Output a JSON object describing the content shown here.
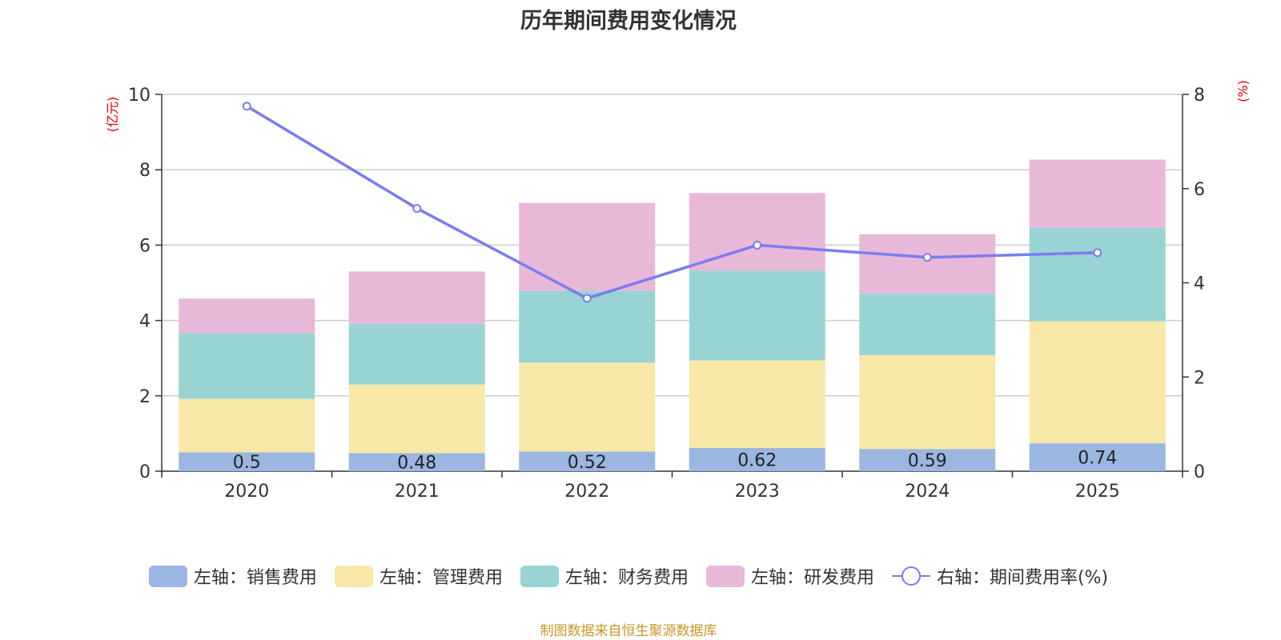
{
  "chart_data": {
    "type": "bar",
    "title": "历年期间费用变化情况",
    "categories": [
      "2020",
      "2021",
      "2022",
      "2023",
      "2024",
      "2025"
    ],
    "series": [
      {
        "name": "左轴：销售费用",
        "axis": "left",
        "type": "bar",
        "color": "#9bb6e0",
        "values": [
          0.5,
          0.48,
          0.52,
          0.62,
          0.59,
          0.74
        ],
        "labels": [
          "0.5",
          "0.48",
          "0.52",
          "0.62",
          "0.59",
          "0.74"
        ]
      },
      {
        "name": "左轴：管理费用",
        "axis": "left",
        "type": "bar",
        "color": "#f7e8a8",
        "values": [
          1.42,
          1.82,
          2.36,
          2.32,
          2.49,
          3.24
        ]
      },
      {
        "name": "左轴：财务费用",
        "axis": "left",
        "type": "bar",
        "color": "#98d4d4",
        "values": [
          1.74,
          1.61,
          1.91,
          2.38,
          1.63,
          2.48
        ]
      },
      {
        "name": "左轴：研发费用",
        "axis": "left",
        "type": "bar",
        "color": "#e8b8d8",
        "values": [
          0.92,
          1.39,
          2.33,
          2.06,
          1.58,
          1.81
        ]
      },
      {
        "name": "右轴：期间费用率(%)",
        "axis": "right",
        "type": "line",
        "color": "#7b7cf0",
        "values": [
          7.75,
          5.58,
          3.67,
          4.8,
          4.54,
          4.64
        ]
      }
    ],
    "left_axis": {
      "label": "(亿元)",
      "ylim": [
        0,
        10
      ],
      "ticks": [
        "0",
        "2",
        "4",
        "6",
        "8",
        "10"
      ]
    },
    "right_axis": {
      "label": "(%)",
      "ylim": [
        0,
        8
      ],
      "ticks": [
        "0",
        "2",
        "4",
        "6",
        "8"
      ]
    },
    "grid": true,
    "legend_position": "bottom"
  },
  "footer": "制图数据来自恒生聚源数据库"
}
